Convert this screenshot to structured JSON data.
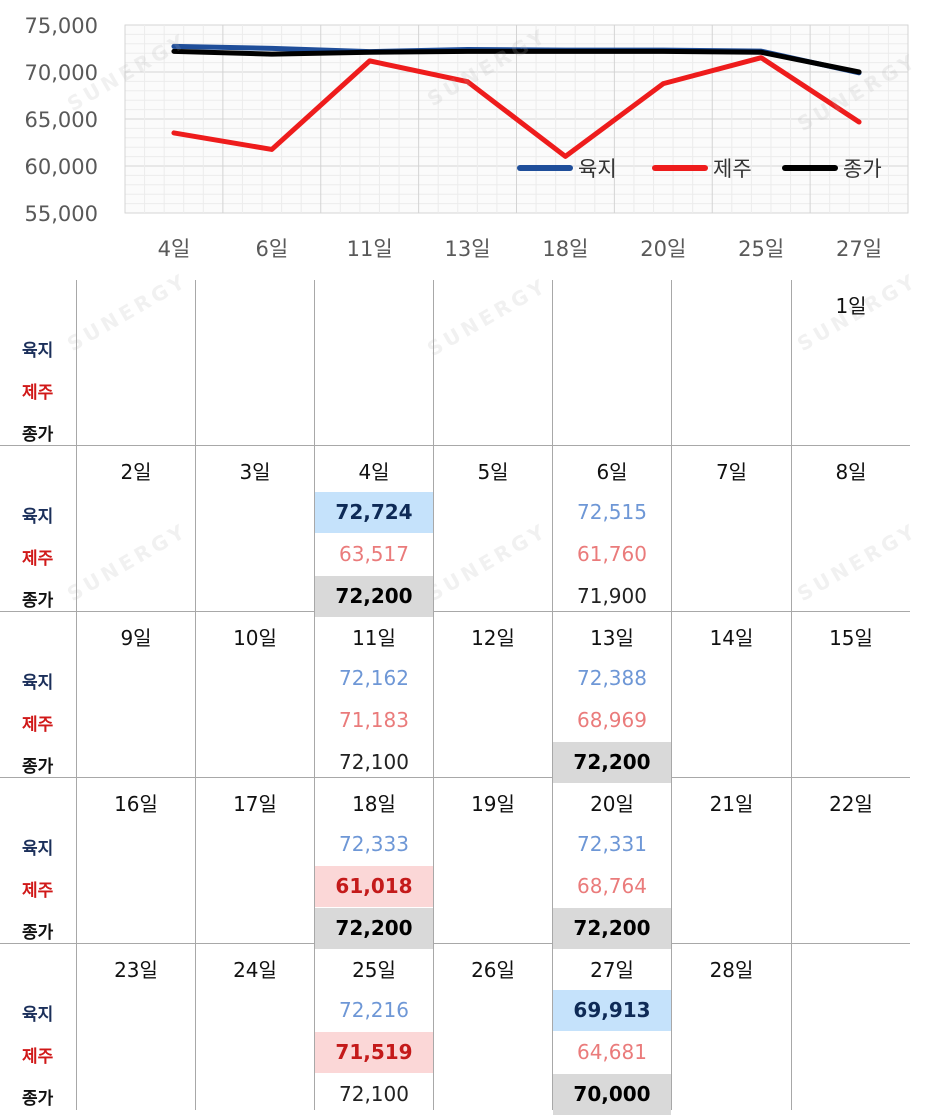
{
  "chart_data": {
    "type": "line",
    "categories": [
      "4일",
      "6일",
      "11일",
      "13일",
      "18일",
      "20일",
      "25일",
      "27일"
    ],
    "ylim": [
      55000,
      75000
    ],
    "yticks": [
      "55,000",
      "60,000",
      "65,000",
      "70,000",
      "75,000"
    ],
    "ytick_values": [
      55000,
      60000,
      65000,
      70000,
      75000
    ],
    "grid": true,
    "legend_position": "bottom-right",
    "series": [
      {
        "name": "육지",
        "color": "#1f4e9a",
        "values": [
          72724,
          72515,
          72162,
          72388,
          72333,
          72331,
          72216,
          69913
        ]
      },
      {
        "name": "제주",
        "color": "#ee1c1c",
        "values": [
          63517,
          61760,
          71183,
          68969,
          61018,
          68764,
          71519,
          64681
        ]
      },
      {
        "name": "종가",
        "color": "#000000",
        "values": [
          72200,
          71900,
          72100,
          72200,
          72200,
          72200,
          72100,
          70000
        ]
      }
    ]
  },
  "watermark_text": "SUNERGY",
  "calendar": {
    "row_labels": {
      "yuk": "육지",
      "jeju": "제주",
      "jong": "종가"
    },
    "label_colors": {
      "yuk": "#1b2f5a",
      "jeju": "#d01818",
      "jong": "#111111"
    },
    "weeks": [
      {
        "days": [
          {
            "d": ""
          },
          {
            "d": ""
          },
          {
            "d": ""
          },
          {
            "d": ""
          },
          {
            "d": ""
          },
          {
            "d": ""
          },
          {
            "d": "1일"
          }
        ]
      },
      {
        "days": [
          {
            "d": "2일"
          },
          {
            "d": "3일"
          },
          {
            "d": "4일",
            "yuk": "72,724",
            "yuk_hl": "blue",
            "jeju": "63,517",
            "jong": "72,200",
            "jong_hl": "gray"
          },
          {
            "d": "5일"
          },
          {
            "d": "6일",
            "yuk": "72,515",
            "jeju": "61,760",
            "jong": "71,900"
          },
          {
            "d": "7일"
          },
          {
            "d": "8일"
          }
        ]
      },
      {
        "days": [
          {
            "d": "9일"
          },
          {
            "d": "10일"
          },
          {
            "d": "11일",
            "yuk": "72,162",
            "jeju": "71,183",
            "jong": "72,100"
          },
          {
            "d": "12일"
          },
          {
            "d": "13일",
            "yuk": "72,388",
            "jeju": "68,969",
            "jong": "72,200",
            "jong_hl": "gray"
          },
          {
            "d": "14일"
          },
          {
            "d": "15일"
          }
        ]
      },
      {
        "days": [
          {
            "d": "16일"
          },
          {
            "d": "17일"
          },
          {
            "d": "18일",
            "yuk": "72,333",
            "jeju": "61,018",
            "jeju_hl": "red",
            "jong": "72,200",
            "jong_hl": "gray"
          },
          {
            "d": "19일"
          },
          {
            "d": "20일",
            "yuk": "72,331",
            "jeju": "68,764",
            "jong": "72,200",
            "jong_hl": "gray"
          },
          {
            "d": "21일"
          },
          {
            "d": "22일"
          }
        ]
      },
      {
        "days": [
          {
            "d": "23일"
          },
          {
            "d": "24일"
          },
          {
            "d": "25일",
            "yuk": "72,216",
            "jeju": "71,519",
            "jeju_hl": "red",
            "jong": "72,100"
          },
          {
            "d": "26일"
          },
          {
            "d": "27일",
            "yuk": "69,913",
            "yuk_hl": "blue",
            "jeju": "64,681",
            "jong": "70,000",
            "jong_hl": "gray"
          },
          {
            "d": "28일"
          },
          {
            "d": ""
          }
        ]
      }
    ]
  }
}
